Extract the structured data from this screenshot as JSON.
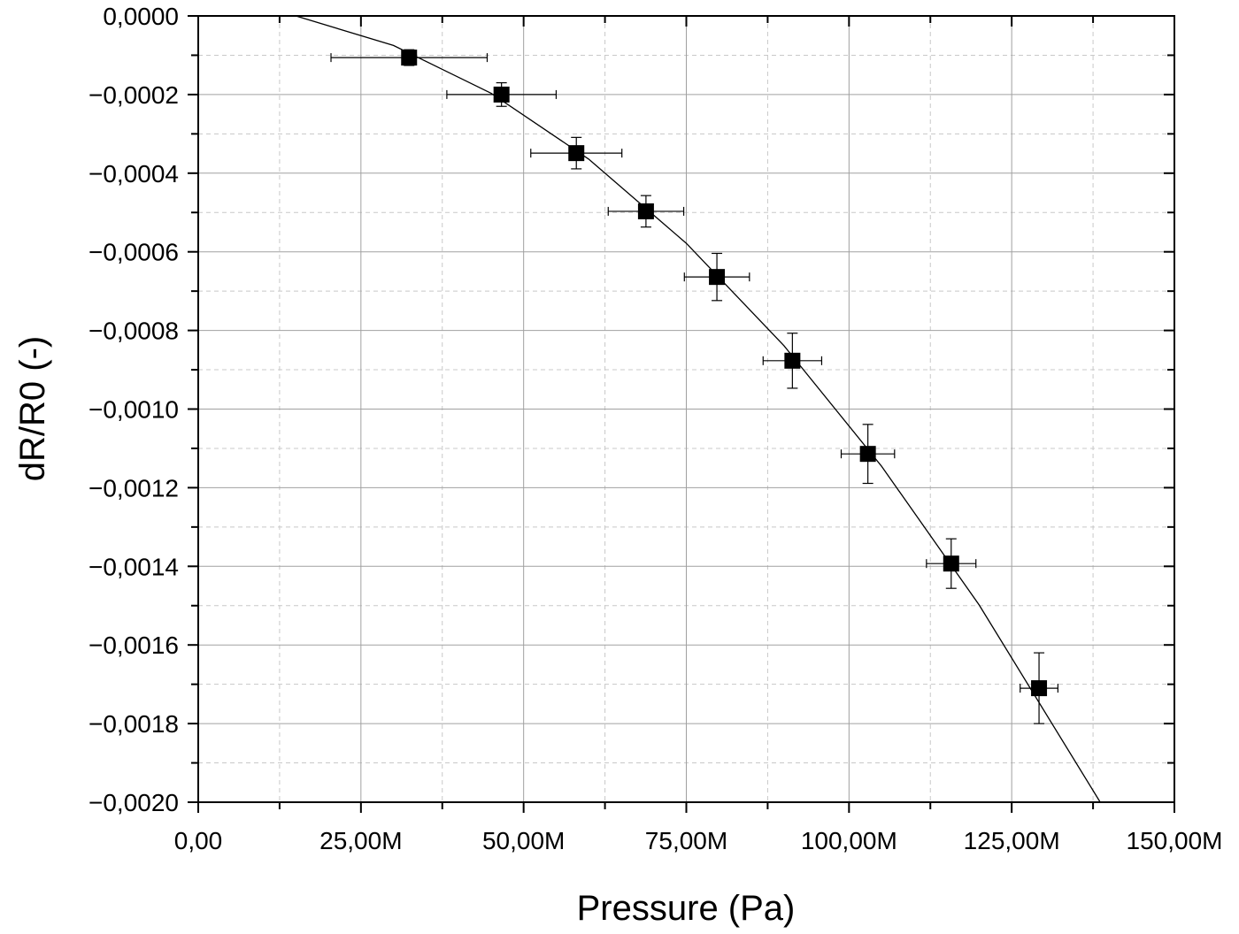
{
  "chart_data": {
    "type": "scatter",
    "title": "",
    "xlabel": "Pressure (Pa)",
    "ylabel": "dR/R0 (-)",
    "xlim": [
      0,
      150000000
    ],
    "ylim": [
      -0.002,
      0.0
    ],
    "grid": true,
    "legend": "none",
    "x_ticks": [
      0,
      25000000,
      50000000,
      75000000,
      100000000,
      125000000,
      150000000
    ],
    "x_tick_labels": [
      "0,00",
      "25,00M",
      "50,00M",
      "75,00M",
      "100,00M",
      "125,00M",
      "150,00M"
    ],
    "y_ticks": [
      0,
      -0.0002,
      -0.0004,
      -0.0006,
      -0.0008,
      -0.001,
      -0.0012,
      -0.0014,
      -0.0016,
      -0.0018,
      -0.002
    ],
    "y_tick_labels": [
      "0,0000",
      "−0,0002",
      "−0,0004",
      "−0,0006",
      "−0,0008",
      "−0,0010",
      "−0,0012",
      "−0,0014",
      "−0,0016",
      "−0,0018",
      "−0,0020"
    ],
    "series": [
      {
        "marker": "square",
        "color": "#000000",
        "x": [
          32400000,
          46600000,
          58100000,
          68800000,
          79700000,
          91300000,
          102900000,
          115700000,
          129200000
        ],
        "y": [
          -0.000106,
          -0.0002,
          -0.000349,
          -0.000497,
          -0.000664,
          -0.000877,
          -0.001114,
          -0.001393,
          -0.00171
        ],
        "x_err": [
          12000000,
          8400000,
          7000000,
          5800000,
          5000000,
          4500000,
          4100000,
          3800000,
          2900000
        ],
        "y_err": [
          2e-05,
          3e-05,
          4e-05,
          4e-05,
          6e-05,
          7e-05,
          7.5e-05,
          6.3e-05,
          9e-05
        ]
      }
    ],
    "fit_curve": {
      "color": "#000000",
      "x": [
        15000000,
        30000000,
        45000000,
        60000000,
        75000000,
        90000000,
        105000000,
        120000000,
        138600000
      ],
      "y": [
        0.0,
        -7.51e-05,
        -0.0001966,
        -0.0003643,
        -0.0005784,
        -0.0008387,
        -0.0011453,
        -0.0014983,
        -0.002
      ]
    }
  }
}
